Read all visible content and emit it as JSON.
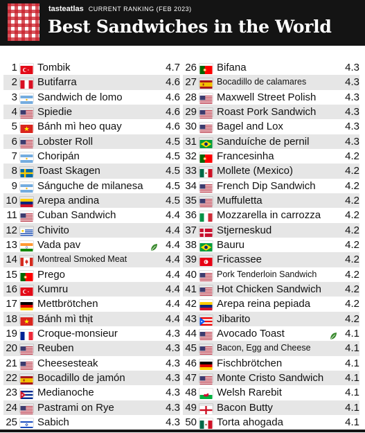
{
  "brand": "tasteatlas",
  "ranking_label": "CURRENT RANKING (FEB 2023)",
  "title": "Best Sandwiches in the World",
  "colors": {
    "header_bg": "#141414",
    "row_shade": "#e6e6e6",
    "leaf": "#3a8a2e"
  },
  "left_column": [
    {
      "rank": "1",
      "name": "Tombik",
      "score": "4.7",
      "flag": "turkey"
    },
    {
      "rank": "2",
      "name": "Butifarra",
      "score": "4.6",
      "flag": "peru"
    },
    {
      "rank": "3",
      "name": "Sandwich de lomo",
      "score": "4.6",
      "flag": "argentina"
    },
    {
      "rank": "4",
      "name": "Spiedie",
      "score": "4.6",
      "flag": "usa"
    },
    {
      "rank": "5",
      "name": "Bánh mì heo quay",
      "score": "4.6",
      "flag": "vietnam"
    },
    {
      "rank": "6",
      "name": "Lobster Roll",
      "score": "4.5",
      "flag": "usa"
    },
    {
      "rank": "7",
      "name": "Choripán",
      "score": "4.5",
      "flag": "argentina"
    },
    {
      "rank": "8",
      "name": "Toast Skagen",
      "score": "4.5",
      "flag": "sweden"
    },
    {
      "rank": "9",
      "name": "Sánguche de milanesa",
      "score": "4.5",
      "flag": "argentina"
    },
    {
      "rank": "10",
      "name": "Arepa andina",
      "score": "4.5",
      "flag": "venezuela"
    },
    {
      "rank": "11",
      "name": "Cuban Sandwich",
      "score": "4.4",
      "flag": "usa"
    },
    {
      "rank": "12",
      "name": "Chivito",
      "score": "4.4",
      "flag": "uruguay"
    },
    {
      "rank": "13",
      "name": "Vada pav",
      "score": "4.4",
      "flag": "india",
      "vegetarian": true
    },
    {
      "rank": "14",
      "name": "Montreal Smoked Meat",
      "score": "4.4",
      "flag": "canada",
      "small": true
    },
    {
      "rank": "15",
      "name": "Prego",
      "score": "4.4",
      "flag": "portugal"
    },
    {
      "rank": "16",
      "name": "Kumru",
      "score": "4.4",
      "flag": "turkey"
    },
    {
      "rank": "17",
      "name": "Mettbrötchen",
      "score": "4.4",
      "flag": "germany"
    },
    {
      "rank": "18",
      "name": "Bánh mì thịt",
      "score": "4.4",
      "flag": "vietnam"
    },
    {
      "rank": "19",
      "name": "Croque-monsieur",
      "score": "4.3",
      "flag": "france"
    },
    {
      "rank": "20",
      "name": "Reuben",
      "score": "4.3",
      "flag": "usa"
    },
    {
      "rank": "21",
      "name": "Cheesesteak",
      "score": "4.3",
      "flag": "usa"
    },
    {
      "rank": "22",
      "name": "Bocadillo de jamón",
      "score": "4.3",
      "flag": "spain"
    },
    {
      "rank": "23",
      "name": "Medianoche",
      "score": "4.3",
      "flag": "cuba"
    },
    {
      "rank": "24",
      "name": "Pastrami on Rye",
      "score": "4.3",
      "flag": "usa"
    },
    {
      "rank": "25",
      "name": "Sabich",
      "score": "4.3",
      "flag": "israel"
    }
  ],
  "right_column": [
    {
      "rank": "26",
      "name": "Bifana",
      "score": "4.3",
      "flag": "portugal"
    },
    {
      "rank": "27",
      "name": "Bocadillo de calamares",
      "score": "4.3",
      "flag": "spain",
      "small": true
    },
    {
      "rank": "28",
      "name": "Maxwell Street Polish",
      "score": "4.3",
      "flag": "usa"
    },
    {
      "rank": "29",
      "name": "Roast Pork Sandwich",
      "score": "4.3",
      "flag": "usa"
    },
    {
      "rank": "30",
      "name": "Bagel and Lox",
      "score": "4.3",
      "flag": "usa"
    },
    {
      "rank": "31",
      "name": "Sanduíche de pernil",
      "score": "4.3",
      "flag": "brazil"
    },
    {
      "rank": "32",
      "name": "Francesinha",
      "score": "4.2",
      "flag": "portugal"
    },
    {
      "rank": "33",
      "name": "Mollete (Mexico)",
      "score": "4.2",
      "flag": "mexico"
    },
    {
      "rank": "34",
      "name": "French Dip Sandwich",
      "score": "4.2",
      "flag": "usa"
    },
    {
      "rank": "35",
      "name": "Muffuletta",
      "score": "4.2",
      "flag": "usa"
    },
    {
      "rank": "36",
      "name": "Mozzarella in carrozza",
      "score": "4.2",
      "flag": "italy"
    },
    {
      "rank": "37",
      "name": "Stjerneskud",
      "score": "4.2",
      "flag": "denmark"
    },
    {
      "rank": "38",
      "name": "Bauru",
      "score": "4.2",
      "flag": "brazil"
    },
    {
      "rank": "39",
      "name": "Fricassee",
      "score": "4.2",
      "flag": "tunisia"
    },
    {
      "rank": "40",
      "name": "Pork Tenderloin Sandwich",
      "score": "4.2",
      "flag": "usa",
      "small": true
    },
    {
      "rank": "41",
      "name": "Hot Chicken Sandwich",
      "score": "4.2",
      "flag": "usa"
    },
    {
      "rank": "42",
      "name": "Arepa reina pepiada",
      "score": "4.2",
      "flag": "venezuela"
    },
    {
      "rank": "43",
      "name": "Jibarito",
      "score": "4.2",
      "flag": "puerto-rico"
    },
    {
      "rank": "44",
      "name": "Avocado Toast",
      "score": "4.1",
      "flag": "usa",
      "vegetarian": true
    },
    {
      "rank": "45",
      "name": "Bacon, Egg and Cheese",
      "score": "4.1",
      "flag": "usa",
      "small": true
    },
    {
      "rank": "46",
      "name": "Fischbrötchen",
      "score": "4.1",
      "flag": "germany"
    },
    {
      "rank": "47",
      "name": "Monte Cristo Sandwich",
      "score": "4.1",
      "flag": "usa"
    },
    {
      "rank": "48",
      "name": "Welsh Rarebit",
      "score": "4.1",
      "flag": "wales"
    },
    {
      "rank": "49",
      "name": "Bacon Butty",
      "score": "4.1",
      "flag": "england"
    },
    {
      "rank": "50",
      "name": "Torta ahogada",
      "score": "4.1",
      "flag": "mexico"
    }
  ]
}
